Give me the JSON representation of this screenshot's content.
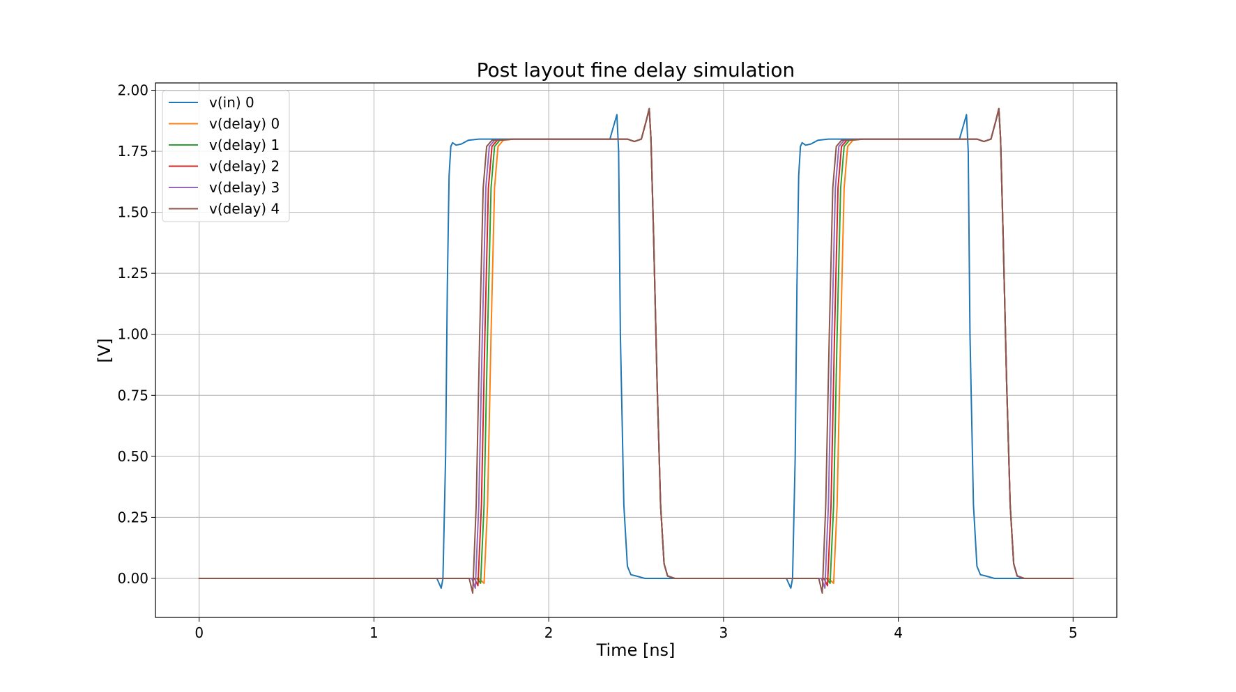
{
  "chart_data": {
    "type": "line",
    "title": "Post layout fine delay simulation",
    "xlabel": "Time [ns]",
    "ylabel": "[V]",
    "xlim": [
      -0.25,
      5.25
    ],
    "ylim": [
      -0.16,
      2.03
    ],
    "xticks": [
      0,
      1,
      2,
      3,
      4,
      5
    ],
    "yticks": [
      0.0,
      0.25,
      0.5,
      0.75,
      1.0,
      1.25,
      1.5,
      1.75,
      2.0
    ],
    "xtick_labels": [
      "0",
      "1",
      "2",
      "3",
      "4",
      "5"
    ],
    "ytick_labels": [
      "0.00",
      "0.25",
      "0.50",
      "0.75",
      "1.00",
      "1.25",
      "1.50",
      "1.75",
      "2.00"
    ],
    "grid": true,
    "legend_position": "top-left",
    "series": [
      {
        "name": "v(in) 0",
        "color": "#1f77b4",
        "x": [
          0,
          1.36,
          1.385,
          1.395,
          1.41,
          1.42,
          1.43,
          1.44,
          1.45,
          1.47,
          1.5,
          1.54,
          1.6,
          1.7,
          2.35,
          2.37,
          2.39,
          2.4,
          2.41,
          2.43,
          2.45,
          2.47,
          2.5,
          2.55,
          2.6,
          3.36,
          3.385,
          3.395,
          3.41,
          3.42,
          3.43,
          3.44,
          3.45,
          3.47,
          3.5,
          3.54,
          3.6,
          3.7,
          4.35,
          4.37,
          4.39,
          4.4,
          4.41,
          4.43,
          4.45,
          4.47,
          4.5,
          4.55,
          4.6,
          5.0
        ],
        "y": [
          0,
          0,
          -0.04,
          0.0,
          0.5,
          1.2,
          1.65,
          1.77,
          1.785,
          1.775,
          1.78,
          1.795,
          1.8,
          1.8,
          1.8,
          1.85,
          1.9,
          1.75,
          1.0,
          0.3,
          0.05,
          0.015,
          0.01,
          0.0,
          0.0,
          0,
          -0.04,
          0.0,
          0.5,
          1.2,
          1.65,
          1.77,
          1.785,
          1.775,
          1.78,
          1.795,
          1.8,
          1.8,
          1.8,
          1.85,
          1.9,
          1.75,
          1.0,
          0.3,
          0.05,
          0.015,
          0.01,
          0.0,
          0.0,
          0.0
        ]
      },
      {
        "name": "v(delay) 0",
        "color": "#ff7f0e",
        "x": [
          0,
          1.56,
          1.6,
          1.63,
          1.65,
          1.67,
          1.69,
          1.71,
          1.74,
          1.8,
          2.45,
          2.49,
          2.53,
          2.56,
          2.575,
          2.585,
          2.6,
          2.62,
          2.64,
          2.66,
          2.68,
          2.72,
          3.56,
          3.6,
          3.63,
          3.65,
          3.67,
          3.69,
          3.71,
          3.74,
          3.8,
          4.45,
          4.49,
          4.53,
          4.56,
          4.575,
          4.585,
          4.6,
          4.62,
          4.64,
          4.66,
          4.68,
          4.72,
          5.0
        ],
        "y": [
          0,
          0,
          0.0,
          -0.02,
          0.3,
          1.0,
          1.6,
          1.77,
          1.795,
          1.8,
          1.8,
          1.79,
          1.8,
          1.88,
          1.925,
          1.8,
          1.4,
          0.8,
          0.3,
          0.06,
          0.01,
          0.0,
          0,
          0.0,
          -0.02,
          0.3,
          1.0,
          1.6,
          1.77,
          1.795,
          1.8,
          1.8,
          1.79,
          1.8,
          1.88,
          1.925,
          1.8,
          1.4,
          0.8,
          0.3,
          0.06,
          0.01,
          0.0,
          0.0
        ]
      },
      {
        "name": "v(delay) 1",
        "color": "#2ca02c",
        "x": [
          0,
          1.55,
          1.59,
          1.61,
          1.63,
          1.65,
          1.67,
          1.69,
          1.72,
          1.8,
          2.45,
          2.49,
          2.53,
          2.56,
          2.575,
          2.585,
          2.6,
          2.62,
          2.64,
          2.66,
          2.68,
          2.72,
          3.55,
          3.59,
          3.61,
          3.63,
          3.65,
          3.67,
          3.69,
          3.72,
          3.8,
          4.45,
          4.49,
          4.53,
          4.56,
          4.575,
          4.585,
          4.6,
          4.62,
          4.64,
          4.66,
          4.68,
          4.72,
          5.0
        ],
        "y": [
          0,
          0,
          0.0,
          -0.02,
          0.3,
          1.0,
          1.6,
          1.77,
          1.795,
          1.8,
          1.8,
          1.79,
          1.8,
          1.88,
          1.925,
          1.8,
          1.4,
          0.8,
          0.3,
          0.06,
          0.01,
          0.0,
          0,
          0.0,
          -0.02,
          0.3,
          1.0,
          1.6,
          1.77,
          1.795,
          1.8,
          1.8,
          1.79,
          1.8,
          1.88,
          1.925,
          1.8,
          1.4,
          0.8,
          0.3,
          0.06,
          0.01,
          0.0,
          0.0
        ]
      },
      {
        "name": "v(delay) 2",
        "color": "#d62728",
        "x": [
          0,
          1.54,
          1.575,
          1.595,
          1.615,
          1.635,
          1.655,
          1.675,
          1.705,
          1.8,
          2.45,
          2.49,
          2.53,
          2.56,
          2.575,
          2.585,
          2.6,
          2.62,
          2.64,
          2.66,
          2.68,
          2.72,
          3.54,
          3.575,
          3.595,
          3.615,
          3.635,
          3.655,
          3.675,
          3.705,
          3.8,
          4.45,
          4.49,
          4.53,
          4.56,
          4.575,
          4.585,
          4.6,
          4.62,
          4.64,
          4.66,
          4.68,
          4.72,
          5.0
        ],
        "y": [
          0,
          0,
          0.0,
          -0.03,
          0.3,
          1.0,
          1.6,
          1.77,
          1.795,
          1.8,
          1.8,
          1.79,
          1.8,
          1.88,
          1.925,
          1.8,
          1.4,
          0.8,
          0.3,
          0.06,
          0.01,
          0.0,
          0,
          0.0,
          -0.03,
          0.3,
          1.0,
          1.6,
          1.77,
          1.795,
          1.8,
          1.8,
          1.79,
          1.8,
          1.88,
          1.925,
          1.8,
          1.4,
          0.8,
          0.3,
          0.06,
          0.01,
          0.0,
          0.0
        ]
      },
      {
        "name": "v(delay) 3",
        "color": "#9467bd",
        "x": [
          0,
          1.53,
          1.56,
          1.58,
          1.6,
          1.62,
          1.64,
          1.66,
          1.69,
          1.8,
          2.45,
          2.49,
          2.53,
          2.56,
          2.575,
          2.585,
          2.6,
          2.62,
          2.64,
          2.66,
          2.68,
          2.72,
          3.53,
          3.56,
          3.58,
          3.6,
          3.62,
          3.64,
          3.66,
          3.69,
          3.8,
          4.45,
          4.49,
          4.53,
          4.56,
          4.575,
          4.585,
          4.6,
          4.62,
          4.64,
          4.66,
          4.68,
          4.72,
          5.0
        ],
        "y": [
          0,
          0,
          0.0,
          -0.04,
          0.3,
          1.0,
          1.6,
          1.77,
          1.795,
          1.8,
          1.8,
          1.79,
          1.8,
          1.88,
          1.925,
          1.8,
          1.4,
          0.8,
          0.3,
          0.06,
          0.01,
          0.0,
          0,
          0.0,
          -0.04,
          0.3,
          1.0,
          1.6,
          1.77,
          1.795,
          1.8,
          1.8,
          1.79,
          1.8,
          1.88,
          1.925,
          1.8,
          1.4,
          0.8,
          0.3,
          0.06,
          0.01,
          0.0,
          0.0
        ]
      },
      {
        "name": "v(delay) 4",
        "color": "#8c564b",
        "x": [
          0,
          1.52,
          1.545,
          1.565,
          1.585,
          1.605,
          1.625,
          1.645,
          1.675,
          1.8,
          2.45,
          2.49,
          2.53,
          2.56,
          2.575,
          2.585,
          2.6,
          2.62,
          2.64,
          2.66,
          2.68,
          2.72,
          3.52,
          3.545,
          3.565,
          3.585,
          3.605,
          3.625,
          3.645,
          3.675,
          3.8,
          4.45,
          4.49,
          4.53,
          4.56,
          4.575,
          4.585,
          4.6,
          4.62,
          4.64,
          4.66,
          4.68,
          4.72,
          5.0
        ],
        "y": [
          0,
          0,
          0.0,
          -0.06,
          0.3,
          1.0,
          1.6,
          1.77,
          1.795,
          1.8,
          1.8,
          1.79,
          1.8,
          1.88,
          1.925,
          1.8,
          1.4,
          0.8,
          0.3,
          0.06,
          0.01,
          0.0,
          0,
          0.0,
          -0.06,
          0.3,
          1.0,
          1.6,
          1.77,
          1.795,
          1.8,
          1.8,
          1.79,
          1.8,
          1.88,
          1.925,
          1.8,
          1.4,
          0.8,
          0.3,
          0.06,
          0.01,
          0.0,
          0.0
        ]
      }
    ]
  }
}
